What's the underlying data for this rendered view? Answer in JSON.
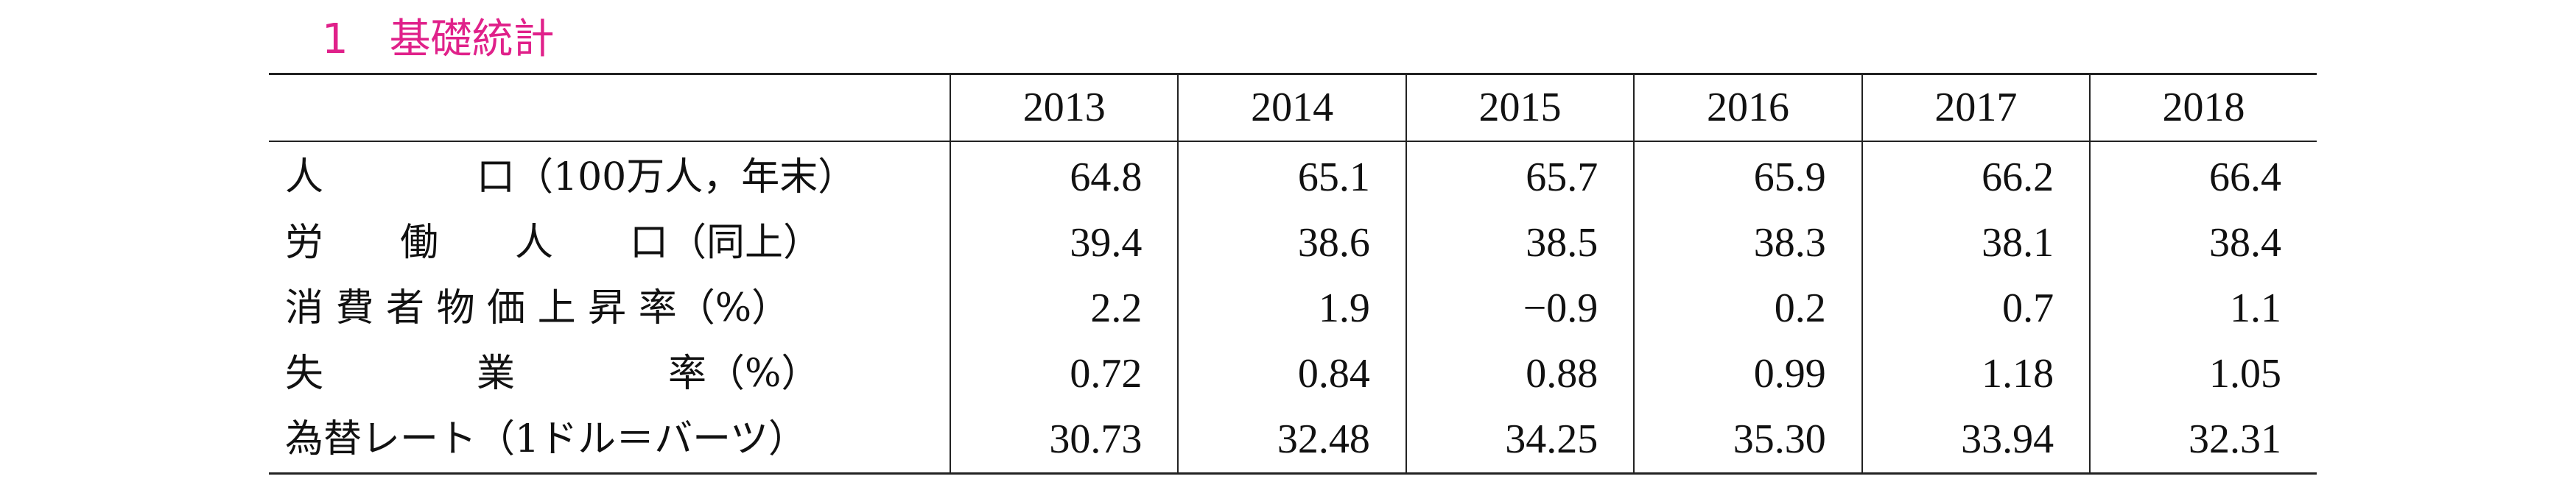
{
  "header": {
    "title": "1　基礎統計"
  },
  "table": {
    "columns": [
      "2013",
      "2014",
      "2015",
      "2016",
      "2017",
      "2018"
    ],
    "rows": [
      {
        "label": "人　　　　口（100万人，年末）",
        "values": [
          "64.8",
          "65.1",
          "65.7",
          "65.9",
          "66.2",
          "66.4"
        ]
      },
      {
        "label": "労　　働　　人　　口（同上）",
        "values": [
          "39.4",
          "38.6",
          "38.5",
          "38.3",
          "38.1",
          "38.4"
        ]
      },
      {
        "label": "消 費 者 物 価 上 昇 率（%）",
        "values": [
          "2.2",
          "1.9",
          "−0.9",
          "0.2",
          "0.7",
          "1.1"
        ]
      },
      {
        "label": "失　　　　業　　　　率（%）",
        "values": [
          "0.72",
          "0.84",
          "0.88",
          "0.99",
          "1.18",
          "1.05"
        ]
      },
      {
        "label": "為替レート（1ドル＝バーツ）",
        "values": [
          "30.73",
          "32.48",
          "34.25",
          "35.30",
          "33.94",
          "32.31"
        ]
      }
    ]
  }
}
